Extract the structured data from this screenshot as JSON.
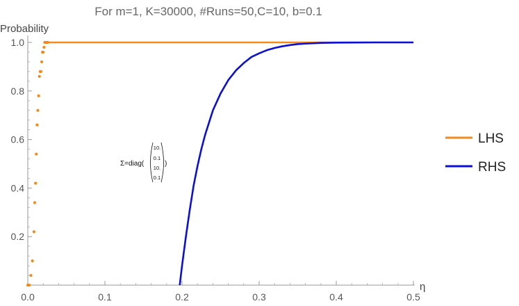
{
  "chart_data": {
    "type": "line",
    "title": "For m=1, K=30000, #Runs=50,C=10, b=0.1",
    "xlabel": "η",
    "ylabel": "Probability",
    "xlim": [
      0,
      0.5
    ],
    "ylim": [
      0,
      1.0
    ],
    "x_ticks": [
      "0.0",
      "0.1",
      "0.2",
      "0.3",
      "0.4",
      "0.5"
    ],
    "y_ticks": [
      "0.2",
      "0.4",
      "0.6",
      "0.8",
      "1.0"
    ],
    "grid": false,
    "legend_position": "right",
    "annotation": {
      "prefix": "Σ=diag(",
      "suffix": ")",
      "matrix": [
        "10.",
        "0.1",
        "10.",
        "0.1"
      ]
    },
    "series": [
      {
        "name": "LHS",
        "color": "#f28a1c",
        "style": "dots+line",
        "points": [
          [
            0.0,
            0.0
          ],
          [
            0.001,
            0.0
          ],
          [
            0.002,
            0.0
          ],
          [
            0.004,
            0.04
          ],
          [
            0.006,
            0.1
          ],
          [
            0.008,
            0.22
          ],
          [
            0.009,
            0.34
          ],
          [
            0.01,
            0.42
          ],
          [
            0.011,
            0.54
          ],
          [
            0.012,
            0.66
          ],
          [
            0.013,
            0.72
          ],
          [
            0.014,
            0.78
          ],
          [
            0.015,
            0.86
          ],
          [
            0.016,
            0.88
          ],
          [
            0.017,
            0.88
          ],
          [
            0.018,
            0.92
          ],
          [
            0.019,
            0.96
          ],
          [
            0.02,
            0.96
          ],
          [
            0.021,
            0.98
          ],
          [
            0.022,
            1.0
          ],
          [
            0.024,
            1.0
          ],
          [
            0.026,
            1.0
          ]
        ],
        "plateau": {
          "from": 0.022,
          "to": 0.5,
          "value": 1.0
        }
      },
      {
        "name": "RHS",
        "color": "#0b10d6",
        "style": "line",
        "points": [
          [
            0.197,
            0.0
          ],
          [
            0.2,
            0.08
          ],
          [
            0.205,
            0.2
          ],
          [
            0.21,
            0.31
          ],
          [
            0.215,
            0.41
          ],
          [
            0.22,
            0.49
          ],
          [
            0.225,
            0.56
          ],
          [
            0.23,
            0.62
          ],
          [
            0.235,
            0.67
          ],
          [
            0.24,
            0.72
          ],
          [
            0.25,
            0.79
          ],
          [
            0.26,
            0.845
          ],
          [
            0.27,
            0.885
          ],
          [
            0.28,
            0.915
          ],
          [
            0.29,
            0.94
          ],
          [
            0.3,
            0.955
          ],
          [
            0.31,
            0.968
          ],
          [
            0.32,
            0.977
          ],
          [
            0.33,
            0.984
          ],
          [
            0.34,
            0.989
          ],
          [
            0.35,
            0.993
          ],
          [
            0.36,
            0.995
          ],
          [
            0.38,
            0.998
          ],
          [
            0.4,
            0.999
          ],
          [
            0.45,
            1.0
          ],
          [
            0.5,
            1.0
          ]
        ]
      }
    ]
  }
}
